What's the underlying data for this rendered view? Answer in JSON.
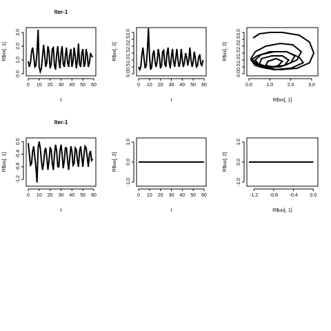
{
  "chart_data": [
    {
      "type": "line",
      "title": "Iter-1",
      "xlabel": "t",
      "ylabel": "R$xx[, 1]",
      "xlim": [
        0,
        60
      ],
      "ylim": [
        0,
        3.2
      ],
      "xticks": [
        0,
        10,
        20,
        30,
        40,
        50,
        60
      ],
      "yticks": [
        0.0,
        1.0,
        2.0,
        3.0
      ],
      "ytick_labels": [
        "0.0",
        "1.0",
        "2.0",
        "3.0"
      ],
      "x": [
        0,
        1,
        2,
        3,
        4,
        5,
        6,
        7,
        8,
        9,
        10,
        11,
        12,
        13,
        14,
        15,
        16,
        17,
        18,
        19,
        20,
        21,
        22,
        23,
        24,
        25,
        26,
        27,
        28,
        29,
        30,
        31,
        32,
        33,
        34,
        35,
        36,
        37,
        38,
        39,
        40,
        41,
        42,
        43,
        44,
        45,
        46,
        47,
        48,
        49,
        50,
        51,
        52,
        53,
        54,
        55,
        56,
        57,
        58,
        59
      ],
      "y": [
        0.9,
        0.5,
        0.8,
        1.6,
        1.9,
        1.3,
        0.5,
        0.6,
        1.6,
        3.2,
        0.5,
        0.15,
        0.4,
        1.2,
        2.1,
        1.4,
        0.5,
        0.8,
        2.0,
        1.6,
        0.4,
        0.7,
        1.8,
        1.9,
        0.6,
        0.3,
        1.4,
        2.0,
        1.0,
        0.4,
        1.5,
        2.0,
        0.7,
        0.5,
        1.3,
        1.9,
        0.8,
        0.5,
        1.4,
        1.8,
        0.5,
        0.9,
        1.9,
        1.3,
        0.4,
        1.0,
        2.2,
        0.7,
        0.5,
        1.5,
        1.8,
        0.5,
        0.7,
        1.8,
        1.4,
        0.5,
        0.8,
        1.5,
        1.3,
        1.2
      ]
    },
    {
      "type": "line",
      "title": "",
      "xlabel": "t",
      "ylabel": "R$xx[, 2]",
      "xlim": [
        0,
        60
      ],
      "ylim": [
        0,
        3.2
      ],
      "xticks": [
        0,
        10,
        20,
        30,
        40,
        50,
        60
      ],
      "yticks": [
        0.0,
        0.5,
        1.0,
        1.5,
        2.0,
        2.5,
        3.0
      ],
      "ytick_labels": [
        "0.0",
        "0.5",
        "1.0",
        "1.5",
        "2.0",
        "2.5",
        "3.0"
      ],
      "x": [
        0,
        1,
        2,
        3,
        4,
        5,
        6,
        7,
        8,
        9,
        10,
        11,
        12,
        13,
        14,
        15,
        16,
        17,
        18,
        19,
        20,
        21,
        22,
        23,
        24,
        25,
        26,
        27,
        28,
        29,
        30,
        31,
        32,
        33,
        34,
        35,
        36,
        37,
        38,
        39,
        40,
        41,
        42,
        43,
        44,
        45,
        46,
        47,
        48,
        49,
        50,
        51,
        52,
        53,
        54,
        55,
        56,
        57,
        58,
        59
      ],
      "y": [
        0.5,
        0.3,
        0.5,
        1.4,
        1.9,
        1.1,
        0.4,
        0.6,
        1.7,
        3.3,
        1.3,
        0.3,
        0.5,
        1.4,
        1.7,
        0.9,
        0.5,
        0.9,
        1.8,
        1.3,
        0.4,
        0.6,
        1.6,
        1.7,
        0.7,
        0.5,
        1.5,
        1.9,
        0.9,
        0.4,
        1.2,
        1.8,
        0.9,
        0.5,
        1.1,
        1.8,
        1.0,
        0.5,
        0.8,
        1.8,
        1.1,
        0.5,
        0.8,
        1.5,
        1.2,
        0.6,
        1.0,
        1.9,
        1.0,
        0.5,
        0.9,
        1.6,
        1.1,
        0.5,
        0.6,
        1.2,
        1.4,
        0.7,
        0.6,
        1.0
      ]
    },
    {
      "type": "line",
      "title": "",
      "xlabel": "R$xx[, 1]",
      "ylabel": "R$xx[, 2]",
      "xlim": [
        0,
        3.2
      ],
      "ylim": [
        0,
        3.2
      ],
      "xticks": [
        0.0,
        1.0,
        2.0,
        3.0
      ],
      "xtick_labels": [
        "0.0",
        "1.0",
        "2.0",
        "3.0"
      ],
      "yticks": [
        0.0,
        0.5,
        1.0,
        1.5,
        2.0,
        2.5,
        3.0
      ],
      "ytick_labels": [
        "0.0",
        "0.5",
        "1.0",
        "1.5",
        "2.0",
        "2.5",
        "3.0"
      ],
      "x": [
        0.2,
        0.5,
        1.0,
        1.6,
        2.4,
        2.9,
        3.1,
        2.9,
        2.3,
        1.5,
        0.8,
        0.3,
        0.1,
        0.3,
        0.8,
        1.5,
        2.1,
        2.5,
        2.3,
        1.7,
        1.0,
        0.5,
        0.3,
        0.6,
        1.2,
        1.8,
        2.2,
        2.0,
        1.5,
        0.9,
        0.5,
        0.6,
        1.1,
        1.6,
        1.9,
        1.7,
        1.2,
        0.8,
        0.9,
        1.3,
        1.6,
        1.4,
        1.0,
        0.3,
        0.1,
        0.4,
        1.0,
        1.8,
        2.4,
        2.6,
        2.0,
        1.2,
        0.5,
        0.2
      ],
      "y": [
        2.6,
        2.9,
        3.0,
        3.0,
        2.8,
        2.3,
        1.5,
        0.8,
        0.4,
        0.3,
        0.4,
        0.7,
        1.1,
        1.6,
        2.0,
        2.2,
        2.1,
        1.6,
        1.0,
        0.6,
        0.5,
        0.6,
        1.0,
        1.4,
        1.6,
        1.6,
        1.3,
        0.8,
        0.5,
        0.5,
        0.7,
        1.1,
        1.3,
        1.3,
        1.0,
        0.6,
        0.5,
        0.6,
        0.9,
        1.1,
        0.9,
        0.6,
        0.4,
        0.6,
        1.0,
        1.3,
        1.6,
        1.6,
        1.2,
        0.8,
        0.4,
        0.3,
        0.5,
        1.0
      ]
    },
    {
      "type": "line",
      "title": "Iter-1",
      "xlabel": "t",
      "ylabel": "R$uu[, 1]",
      "xlim": [
        0,
        60
      ],
      "ylim": [
        -1.35,
        0.05
      ],
      "xticks": [
        0,
        10,
        20,
        30,
        40,
        50,
        60
      ],
      "yticks": [
        -1.2,
        -0.8,
        -0.4,
        0.0
      ],
      "ytick_labels": [
        "-1.2",
        "-0.8",
        "-0.4",
        "0.0"
      ],
      "x": [
        0,
        1,
        2,
        3,
        4,
        5,
        6,
        7,
        8,
        9,
        10,
        11,
        12,
        13,
        14,
        15,
        16,
        17,
        18,
        19,
        20,
        21,
        22,
        23,
        24,
        25,
        26,
        27,
        28,
        29,
        30,
        31,
        32,
        33,
        34,
        35,
        36,
        37,
        38,
        39,
        40,
        41,
        42,
        43,
        44,
        45,
        46,
        47,
        48,
        49,
        50,
        51,
        52,
        53,
        54,
        55,
        56,
        57,
        58,
        59
      ],
      "y": [
        -0.05,
        -0.4,
        -0.75,
        -0.7,
        -0.3,
        -0.15,
        -0.5,
        -0.8,
        -1.3,
        -0.2,
        0.0,
        -0.2,
        -0.6,
        -0.9,
        -0.7,
        -0.3,
        -0.2,
        -0.5,
        -0.9,
        -0.6,
        -0.2,
        -0.25,
        -0.7,
        -0.9,
        -0.4,
        -0.1,
        -0.3,
        -0.8,
        -0.8,
        -0.3,
        -0.1,
        -0.4,
        -0.85,
        -0.6,
        -0.2,
        -0.2,
        -0.6,
        -0.9,
        -0.5,
        -0.15,
        -0.3,
        -0.75,
        -0.7,
        -0.2,
        -0.25,
        -0.6,
        -0.8,
        -0.3,
        -0.15,
        -0.5,
        -0.8,
        -0.4,
        -0.15,
        -0.2,
        -0.5,
        -0.8,
        -0.4,
        -0.3,
        -0.6,
        -0.55
      ]
    },
    {
      "type": "line",
      "title": "",
      "xlabel": "t",
      "ylabel": "R$uu[, 2]",
      "xlim": [
        0,
        60
      ],
      "ylim": [
        -1.1,
        1.1
      ],
      "xticks": [
        0,
        10,
        20,
        30,
        40,
        50,
        60
      ],
      "yticks": [
        -1.0,
        0.0,
        1.0
      ],
      "ytick_labels": [
        "-1.0",
        "0.0",
        "1.0"
      ],
      "x": [
        0,
        60
      ],
      "y": [
        0,
        0
      ]
    },
    {
      "type": "line",
      "title": "",
      "xlabel": "R$uu[, 1]",
      "ylabel": "R$uu[, 2]",
      "xlim": [
        -1.3,
        0.05
      ],
      "ylim": [
        -1.1,
        1.1
      ],
      "xticks": [
        -1.2,
        -0.8,
        -0.4,
        0.0
      ],
      "xtick_labels": [
        "-1.2",
        "-0.8",
        "-0.4",
        "0.0"
      ],
      "yticks": [
        -1.0,
        0.0,
        1.0
      ],
      "ytick_labels": [
        "-1.0",
        "0.0",
        "1.0"
      ],
      "x": [
        -1.3,
        0.0
      ],
      "y": [
        0,
        0
      ]
    }
  ]
}
